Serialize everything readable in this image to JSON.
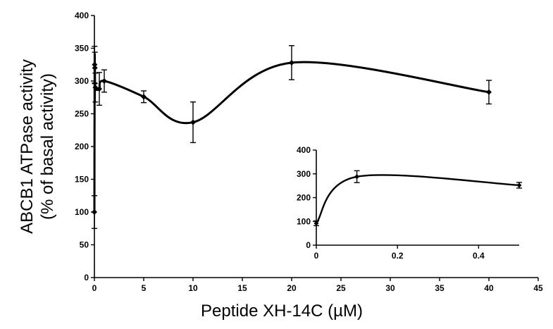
{
  "chart_data": [
    {
      "type": "line",
      "role": "main",
      "xlabel": "Peptide XH-14C (µM)",
      "ylabel_lines": [
        "ABCB1 ATPase activity",
        "(% of basal activity)"
      ],
      "xlim": [
        0,
        45
      ],
      "ylim": [
        0,
        400
      ],
      "xticks": [
        0,
        5,
        10,
        15,
        20,
        25,
        30,
        35,
        40,
        45
      ],
      "yticks": [
        0,
        50,
        100,
        150,
        200,
        250,
        300,
        350,
        400
      ],
      "grid": false,
      "series": [
        {
          "x": [
            0,
            0.025,
            0.05,
            0.1,
            0.5,
            1,
            5,
            10,
            20,
            40
          ],
          "y": [
            100,
            325,
            320,
            290,
            288,
            300,
            276,
            237,
            328,
            283
          ],
          "err": [
            25,
            28,
            24,
            22,
            25,
            17,
            9,
            31,
            26,
            18
          ]
        }
      ]
    },
    {
      "type": "line",
      "role": "inset",
      "xlim": [
        0,
        0.5
      ],
      "ylim": [
        0,
        400
      ],
      "xticks": [
        0,
        0.2,
        0.4
      ],
      "yticks": [
        0,
        100,
        200,
        300,
        400
      ],
      "grid": false,
      "series": [
        {
          "x": [
            0,
            0.1,
            0.5
          ],
          "y": [
            92,
            288,
            252
          ],
          "err": [
            10,
            25,
            12
          ]
        }
      ]
    }
  ]
}
